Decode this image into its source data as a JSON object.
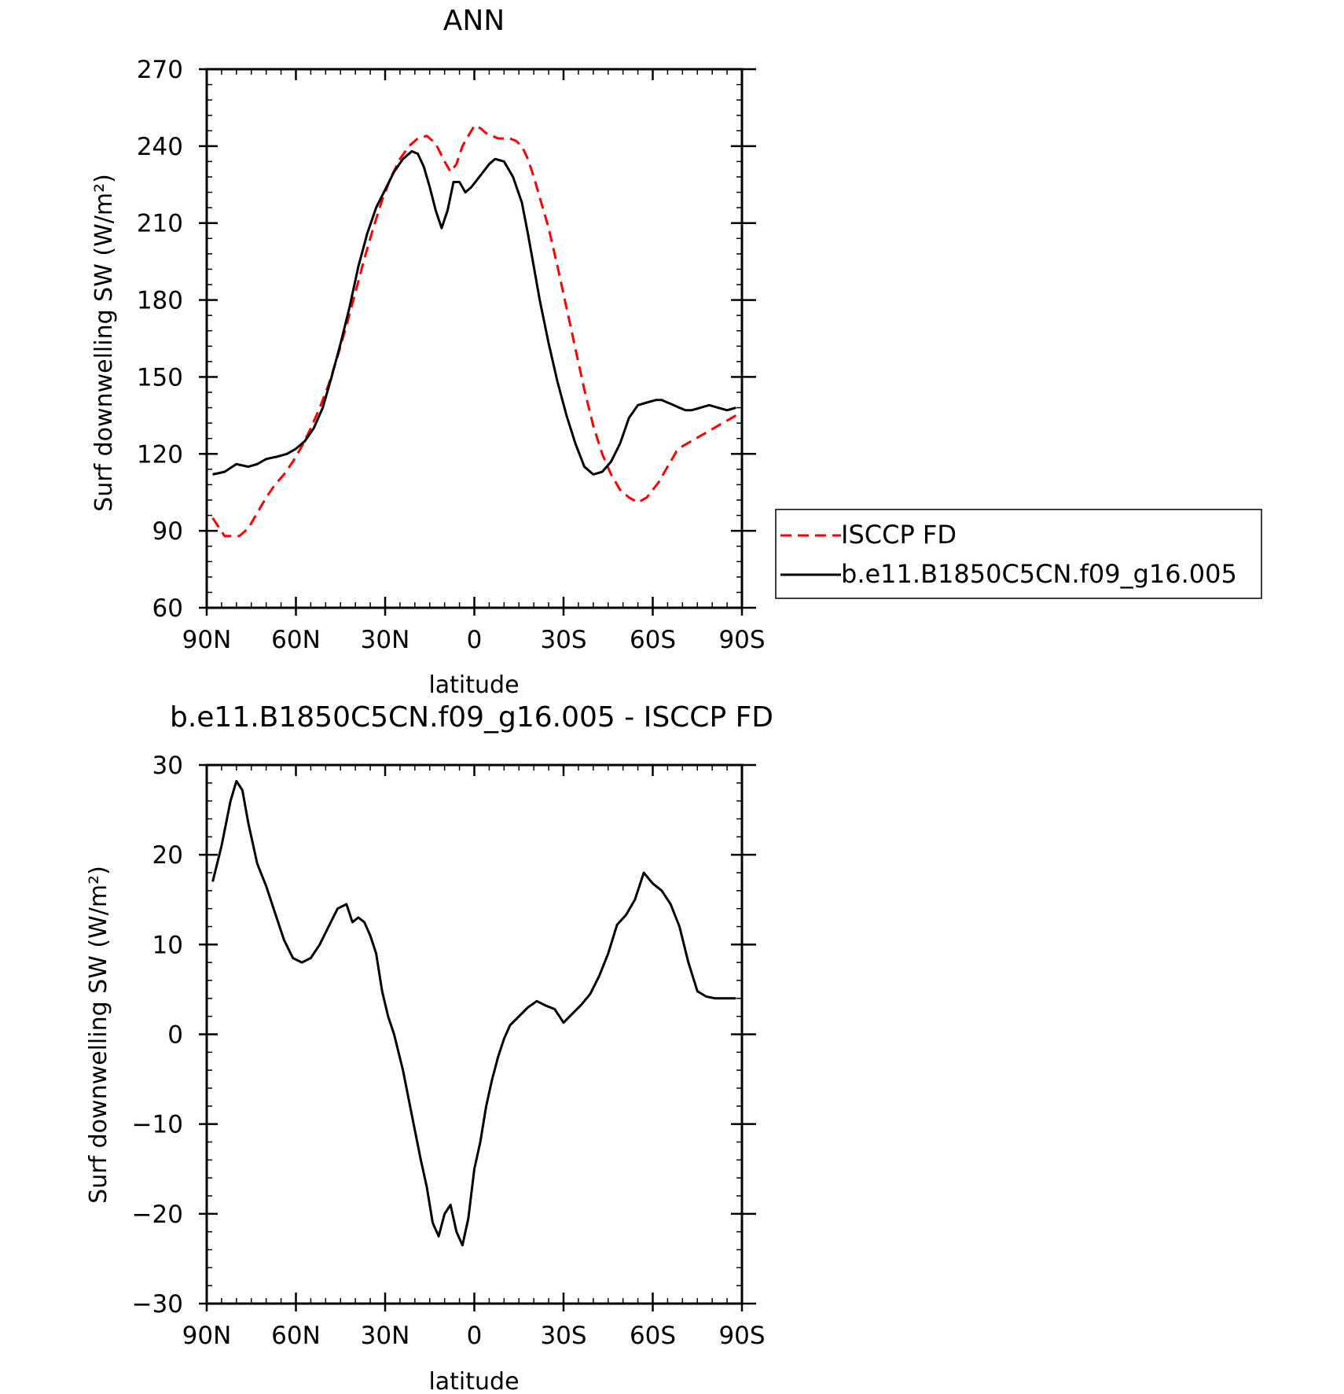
{
  "chart_data": [
    {
      "type": "line",
      "title": "ANN",
      "xlabel": "latitude",
      "ylabel": "Surf downwelling SW (W/m²)",
      "x_tick_labels": [
        "90N",
        "60N",
        "30N",
        "0",
        "30S",
        "60S",
        "90S"
      ],
      "y_tick_labels": [
        "60",
        "90",
        "120",
        "150",
        "180",
        "210",
        "240",
        "270"
      ],
      "xlim": [
        90,
        -90
      ],
      "ylim": [
        60,
        270
      ],
      "grid": false,
      "legend_placement": "right",
      "series": [
        {
          "name": "ISCCP FD",
          "color": "#ff0000",
          "dash": "dashed",
          "x": [
            88,
            84,
            79,
            76,
            73,
            70,
            67,
            64,
            61,
            58,
            55,
            52,
            49,
            46,
            43,
            40,
            37,
            34,
            31,
            28,
            25,
            22,
            19,
            16,
            13,
            10,
            8,
            6,
            4,
            2,
            0,
            -2,
            -4,
            -6,
            -8,
            -10,
            -12,
            -14,
            -16,
            -18,
            -20,
            -22,
            -25,
            -28,
            -31,
            -34,
            -37,
            -40,
            -43,
            -46,
            -49,
            -52,
            -55,
            -58,
            -60,
            -62,
            -64,
            -66,
            -68,
            -70,
            -73,
            -76,
            -79,
            -82,
            -85,
            -88
          ],
          "y": [
            95,
            88,
            88,
            91,
            97,
            103,
            108,
            112,
            117,
            123,
            130,
            138,
            147,
            158,
            170,
            183,
            196,
            208,
            219,
            228,
            235,
            240,
            243,
            244,
            241,
            234,
            230,
            233,
            240,
            244,
            248,
            247,
            245,
            244,
            243,
            243,
            243,
            242,
            240,
            235,
            228,
            220,
            208,
            193,
            177,
            161,
            145,
            131,
            120,
            112,
            106,
            103,
            101,
            103,
            106,
            109,
            113,
            117,
            121,
            123,
            125,
            127,
            129,
            131,
            133,
            135
          ]
        },
        {
          "name": "b.e11.B1850C5CN.f09_g16.005",
          "color": "#000000",
          "dash": "solid",
          "x": [
            88,
            84,
            80,
            76,
            73,
            70,
            66,
            63,
            60,
            57,
            54,
            51,
            48,
            45,
            42,
            39,
            36,
            33,
            30,
            27,
            24,
            21,
            19,
            17,
            15,
            13,
            11,
            9,
            7,
            5,
            3,
            1,
            -1,
            -3,
            -5,
            -7,
            -10,
            -13,
            -16,
            -18,
            -20,
            -22,
            -25,
            -28,
            -31,
            -34,
            -37,
            -40,
            -43,
            -46,
            -49,
            -52,
            -55,
            -58,
            -61,
            -63,
            -65,
            -67,
            -69,
            -71,
            -73,
            -76,
            -79,
            -82,
            -85,
            -88
          ],
          "y": [
            112,
            113,
            116,
            115,
            116,
            118,
            119,
            120,
            122,
            125,
            130,
            138,
            150,
            163,
            177,
            193,
            206,
            216,
            223,
            230,
            235,
            238,
            237,
            232,
            224,
            215,
            208,
            215,
            226,
            226,
            222,
            224,
            227,
            230,
            233,
            235,
            234,
            228,
            218,
            206,
            193,
            180,
            163,
            148,
            135,
            124,
            115,
            112,
            113,
            117,
            124,
            134,
            139,
            140,
            141,
            141,
            140,
            139,
            138,
            137,
            137,
            138,
            139,
            138,
            137,
            138
          ]
        }
      ]
    },
    {
      "type": "line",
      "title": "b.e11.B1850C5CN.f09_g16.005 - ISCCP FD",
      "xlabel": "latitude",
      "ylabel": "Surf downwelling SW (W/m²)",
      "x_tick_labels": [
        "90N",
        "60N",
        "30N",
        "0",
        "30S",
        "60S",
        "90S"
      ],
      "y_tick_labels": [
        "-30",
        "-20",
        "-10",
        "0",
        "10",
        "20",
        "30"
      ],
      "xlim": [
        90,
        -90
      ],
      "ylim": [
        -30,
        30
      ],
      "grid": false,
      "series": [
        {
          "color": "#000000",
          "dash": "solid",
          "x": [
            88,
            85,
            82,
            80,
            78,
            76,
            73,
            70,
            67,
            64,
            61,
            58,
            55,
            52,
            49,
            46,
            43,
            41,
            39,
            37,
            35,
            33,
            31,
            29,
            27,
            24,
            21,
            18,
            16,
            14,
            12,
            10,
            8,
            6,
            4,
            2,
            0,
            -2,
            -4,
            -6,
            -8,
            -10,
            -12,
            -15,
            -18,
            -21,
            -24,
            -27,
            -30,
            -33,
            -36,
            -39,
            -42,
            -45,
            -48,
            -51,
            -54,
            -57,
            -60,
            -63,
            -66,
            -69,
            -72,
            -75,
            -78,
            -81,
            -83,
            -86,
            -88
          ],
          "y": [
            17,
            21,
            26,
            28.2,
            27.2,
            23.5,
            19,
            16.5,
            13.5,
            10.5,
            8.5,
            8,
            8.5,
            10,
            12,
            14,
            14.5,
            12.5,
            13,
            12.5,
            11,
            9,
            4.8,
            2,
            0,
            -4,
            -9,
            -14,
            -17,
            -21,
            -22.5,
            -20,
            -19,
            -22,
            -23.5,
            -20.5,
            -15,
            -12,
            -8,
            -5,
            -2.5,
            -0.5,
            1,
            2,
            3,
            3.7,
            3.2,
            2.8,
            1.3,
            2.3,
            3.3,
            4.5,
            6.5,
            9,
            12.2,
            13.3,
            15,
            18,
            16.8,
            16,
            14.5,
            12,
            8,
            4.8,
            4.2,
            4,
            4,
            4,
            4
          ]
        }
      ]
    }
  ]
}
